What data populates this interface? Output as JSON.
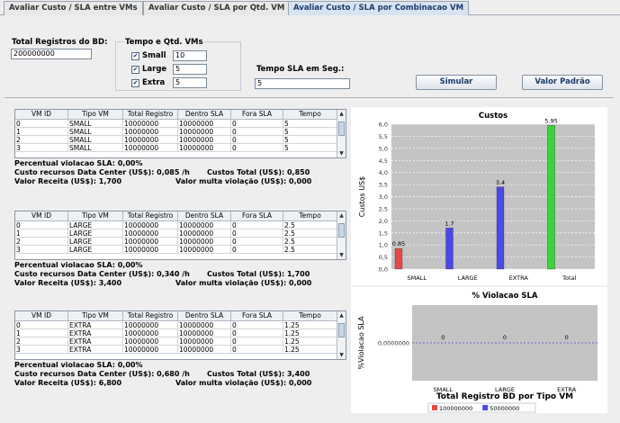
{
  "tabs": [
    {
      "label": "Avaliar Custo / SLA entre VMs"
    },
    {
      "label": "Avaliar Custo / SLA por Qtd. VM"
    },
    {
      "label": "Avaliar Custo / SLA por Combinacao VM"
    }
  ],
  "form": {
    "total_registros_label": "Total Registros do BD:",
    "total_registros_value": "200000000",
    "group_title": "Tempo e Qtd. VMs",
    "vm_small_label": "Small",
    "vm_small_value": "10",
    "vm_large_label": "Large",
    "vm_large_value": "5",
    "vm_extra_label": "Extra",
    "vm_extra_value": "5",
    "tempo_sla_label": "Tempo SLA em Seg.:",
    "tempo_sla_value": "5",
    "simular_label": "Simular",
    "valor_padrao_label": "Valor Padrão"
  },
  "table_headers": [
    "VM ID",
    "Tipo VM",
    "Total Registro",
    "Dentro SLA",
    "Fora SLA",
    "Tempo"
  ],
  "groups": [
    {
      "rows": [
        [
          "0",
          "SMALL",
          "10000000",
          "10000000",
          "0",
          "5"
        ],
        [
          "1",
          "SMALL",
          "10000000",
          "10000000",
          "0",
          "5"
        ],
        [
          "2",
          "SMALL",
          "10000000",
          "10000000",
          "0",
          "5"
        ],
        [
          "3",
          "SMALL",
          "10000000",
          "10000000",
          "0",
          "5"
        ]
      ],
      "percentual": "Percentual violacao SLA: 0,00%",
      "custo_recursos": "Custo recursos Data Center (US$): 0,085 /h",
      "custos_total": "Custos Total (US$): 0,850",
      "valor_receita": "Valor Receita (US$): 1,700",
      "valor_multa": "Valor multa violação (US$): 0,000"
    },
    {
      "rows": [
        [
          "0",
          "LARGE",
          "10000000",
          "10000000",
          "0",
          "2.5"
        ],
        [
          "1",
          "LARGE",
          "10000000",
          "10000000",
          "0",
          "2.5"
        ],
        [
          "2",
          "LARGE",
          "10000000",
          "10000000",
          "0",
          "2.5"
        ],
        [
          "3",
          "LARGE",
          "10000000",
          "10000000",
          "0",
          "2.5"
        ]
      ],
      "percentual": "Percentual violacao SLA: 0,00%",
      "custo_recursos": "Custo recursos Data Center (US$): 0,340 /h",
      "custos_total": "Custos Total (US$): 1,700",
      "valor_receita": "Valor Receita (US$): 3,400",
      "valor_multa": "Valor multa violação (US$): 0,000"
    },
    {
      "rows": [
        [
          "0",
          "EXTRA",
          "10000000",
          "10000000",
          "0",
          "1.25"
        ],
        [
          "1",
          "EXTRA",
          "10000000",
          "10000000",
          "0",
          "1.25"
        ],
        [
          "2",
          "EXTRA",
          "10000000",
          "10000000",
          "0",
          "1.25"
        ],
        [
          "3",
          "EXTRA",
          "10000000",
          "10000000",
          "0",
          "1.25"
        ]
      ],
      "percentual": "Percentual violacao SLA: 0,00%",
      "custo_recursos": "Custo recursos Data Center (US$): 0,680 /h",
      "custos_total": "Custos Total (US$): 3,400",
      "valor_receita": "Valor Receita (US$): 6,800",
      "valor_multa": "Valor multa violação (US$): 0,000"
    }
  ],
  "chart_data": [
    {
      "type": "bar",
      "title": "Custos",
      "ylabel": "Custos US$",
      "categories": [
        "SMALL",
        "LARGE",
        "EXTRA",
        "Total"
      ],
      "values": [
        0.85,
        1.7,
        3.4,
        5.95
      ],
      "value_labels": [
        "0.85",
        "1.7",
        "3.4",
        "5.95"
      ],
      "colors": [
        "#e84848",
        "#4a4ae6",
        "#4a4ae6",
        "#38d438"
      ],
      "ylim": [
        0,
        6
      ],
      "yticks": [
        "0,0",
        "0,5",
        "1,0",
        "1,5",
        "2,0",
        "2,5",
        "3,0",
        "3,5",
        "4,0",
        "4,5",
        "5,0",
        "5,5",
        "6,0"
      ],
      "grid": true
    },
    {
      "type": "line",
      "title": "% Violacao SLA",
      "ylabel": "%Violacao SLA",
      "xlabel": "Total Registro BD por Tipo VM",
      "categories": [
        "SMALL",
        "LARGE",
        "EXTRA"
      ],
      "values": [
        0,
        0,
        0
      ],
      "value_labels": [
        "0",
        "0",
        "0"
      ],
      "ytick": "0,0000000",
      "legend": [
        {
          "name": "100000000",
          "color": "#e84848"
        },
        {
          "name": "50000000",
          "color": "#4a4ae6"
        }
      ],
      "legend_position": "bottom"
    }
  ]
}
